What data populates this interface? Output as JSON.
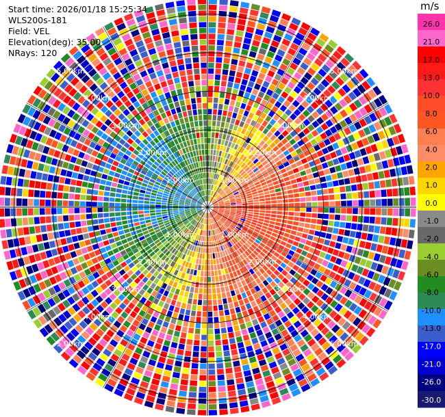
{
  "info": {
    "start_time": "Start time: 2026/01/18 15:25:34",
    "instrument": "WLS200s-181",
    "field": "Field: VEL",
    "elevation": "Elevation(deg): 35.00",
    "nrays": "NRays: 120"
  },
  "colorbar": {
    "unit": "m/s",
    "ticks": [
      "26.0",
      "21.0",
      "17.0",
      "13.0",
      "10.0",
      "8.0",
      "6.0",
      "4.0",
      "2.0",
      "1.0",
      "0.0",
      "-1.0",
      "-2.0",
      "-4.0",
      "-6.0",
      "-8.0",
      "-10.0",
      "-13.0",
      "-17.0",
      "-21.0",
      "-26.0",
      "-30.0"
    ],
    "colors": [
      "#ff33aa",
      "#ff66cc",
      "#ff0000",
      "#ff1a1a",
      "#ff3333",
      "#ff4d2a",
      "#ff5722",
      "#ff7f50",
      "#ff8c69",
      "#ffa500",
      "#ffd700",
      "#ffff00",
      "#8a8a8a",
      "#696969",
      "#9acd32",
      "#6b8e23",
      "#228b22",
      "#2e8b57",
      "#1e90ff",
      "#3a5fcd",
      "#0000ff",
      "#0000cd",
      "#000080",
      "#191970"
    ]
  },
  "chart_data": {
    "type": "ppi",
    "field": "VEL",
    "units": "m/s",
    "nrays": 120,
    "elevation_deg": 35.0,
    "max_range_km": 5.4,
    "range_rings_km": [
      1.0,
      2.0,
      3.0,
      4.0,
      5.0
    ],
    "ring_labels": [
      "1.00km",
      "2.00km",
      "3.00km",
      "4.00km",
      "5.00km"
    ],
    "value_range": [
      -30.0,
      30.0
    ],
    "pattern": "approaching (blue) flow to the west-northwest, receding (red/orange) flow to the east-southeast within ~2.5 km; noise beyond"
  }
}
